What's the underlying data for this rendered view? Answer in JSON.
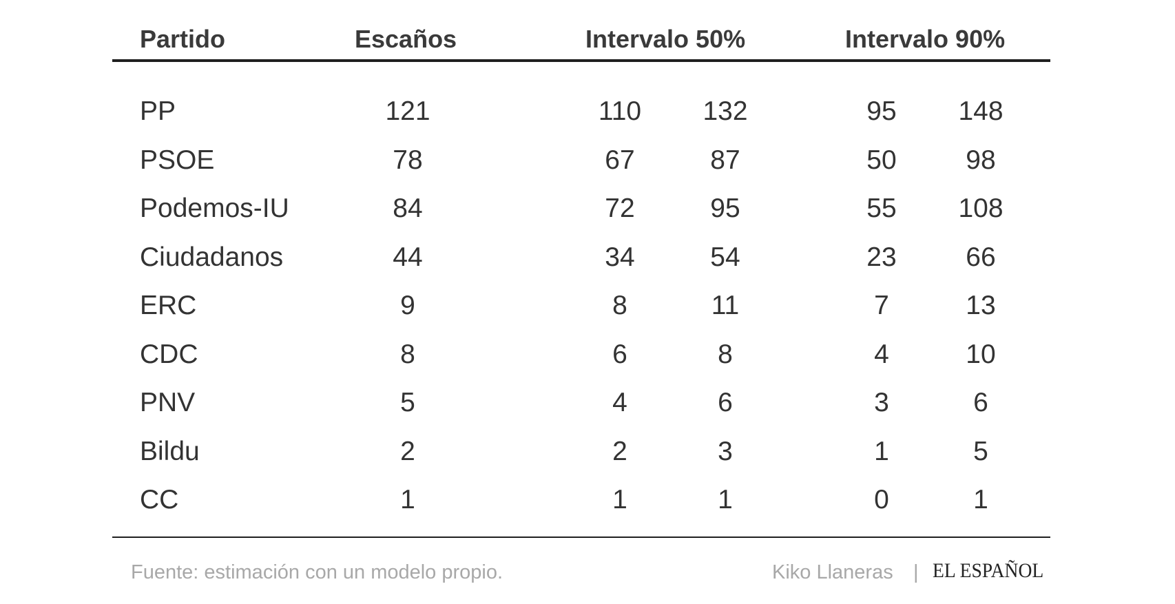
{
  "chart_data": {
    "type": "table",
    "columns": [
      "Partido",
      "Escaños",
      "Intervalo 50%",
      "Intervalo 90%"
    ],
    "rows": [
      {
        "party": "PP",
        "seats": 121,
        "int50": [
          110,
          132
        ],
        "int90": [
          95,
          148
        ]
      },
      {
        "party": "PSOE",
        "seats": 78,
        "int50": [
          67,
          87
        ],
        "int90": [
          50,
          98
        ]
      },
      {
        "party": "Podemos-IU",
        "seats": 84,
        "int50": [
          72,
          95
        ],
        "int90": [
          55,
          108
        ]
      },
      {
        "party": "Ciudadanos",
        "seats": 44,
        "int50": [
          34,
          54
        ],
        "int90": [
          23,
          66
        ]
      },
      {
        "party": "ERC",
        "seats": 9,
        "int50": [
          8,
          11
        ],
        "int90": [
          7,
          13
        ]
      },
      {
        "party": "CDC",
        "seats": 8,
        "int50": [
          6,
          8
        ],
        "int90": [
          4,
          10
        ]
      },
      {
        "party": "PNV",
        "seats": 5,
        "int50": [
          4,
          6
        ],
        "int90": [
          3,
          6
        ]
      },
      {
        "party": "Bildu",
        "seats": 2,
        "int50": [
          2,
          3
        ],
        "int90": [
          1,
          5
        ]
      },
      {
        "party": "CC",
        "seats": 1,
        "int50": [
          1,
          1
        ],
        "int90": [
          0,
          1
        ]
      }
    ]
  },
  "footer": {
    "source": "Fuente: estimación con un modelo propio.",
    "author": "Kiko Llaneras",
    "separator": "|",
    "brand": "EL ESPAÑOL"
  },
  "colors": {
    "text": "#333333",
    "header": "#3a3a3a",
    "rule": "#1f1f1f",
    "footer": "#a8a8a8"
  }
}
